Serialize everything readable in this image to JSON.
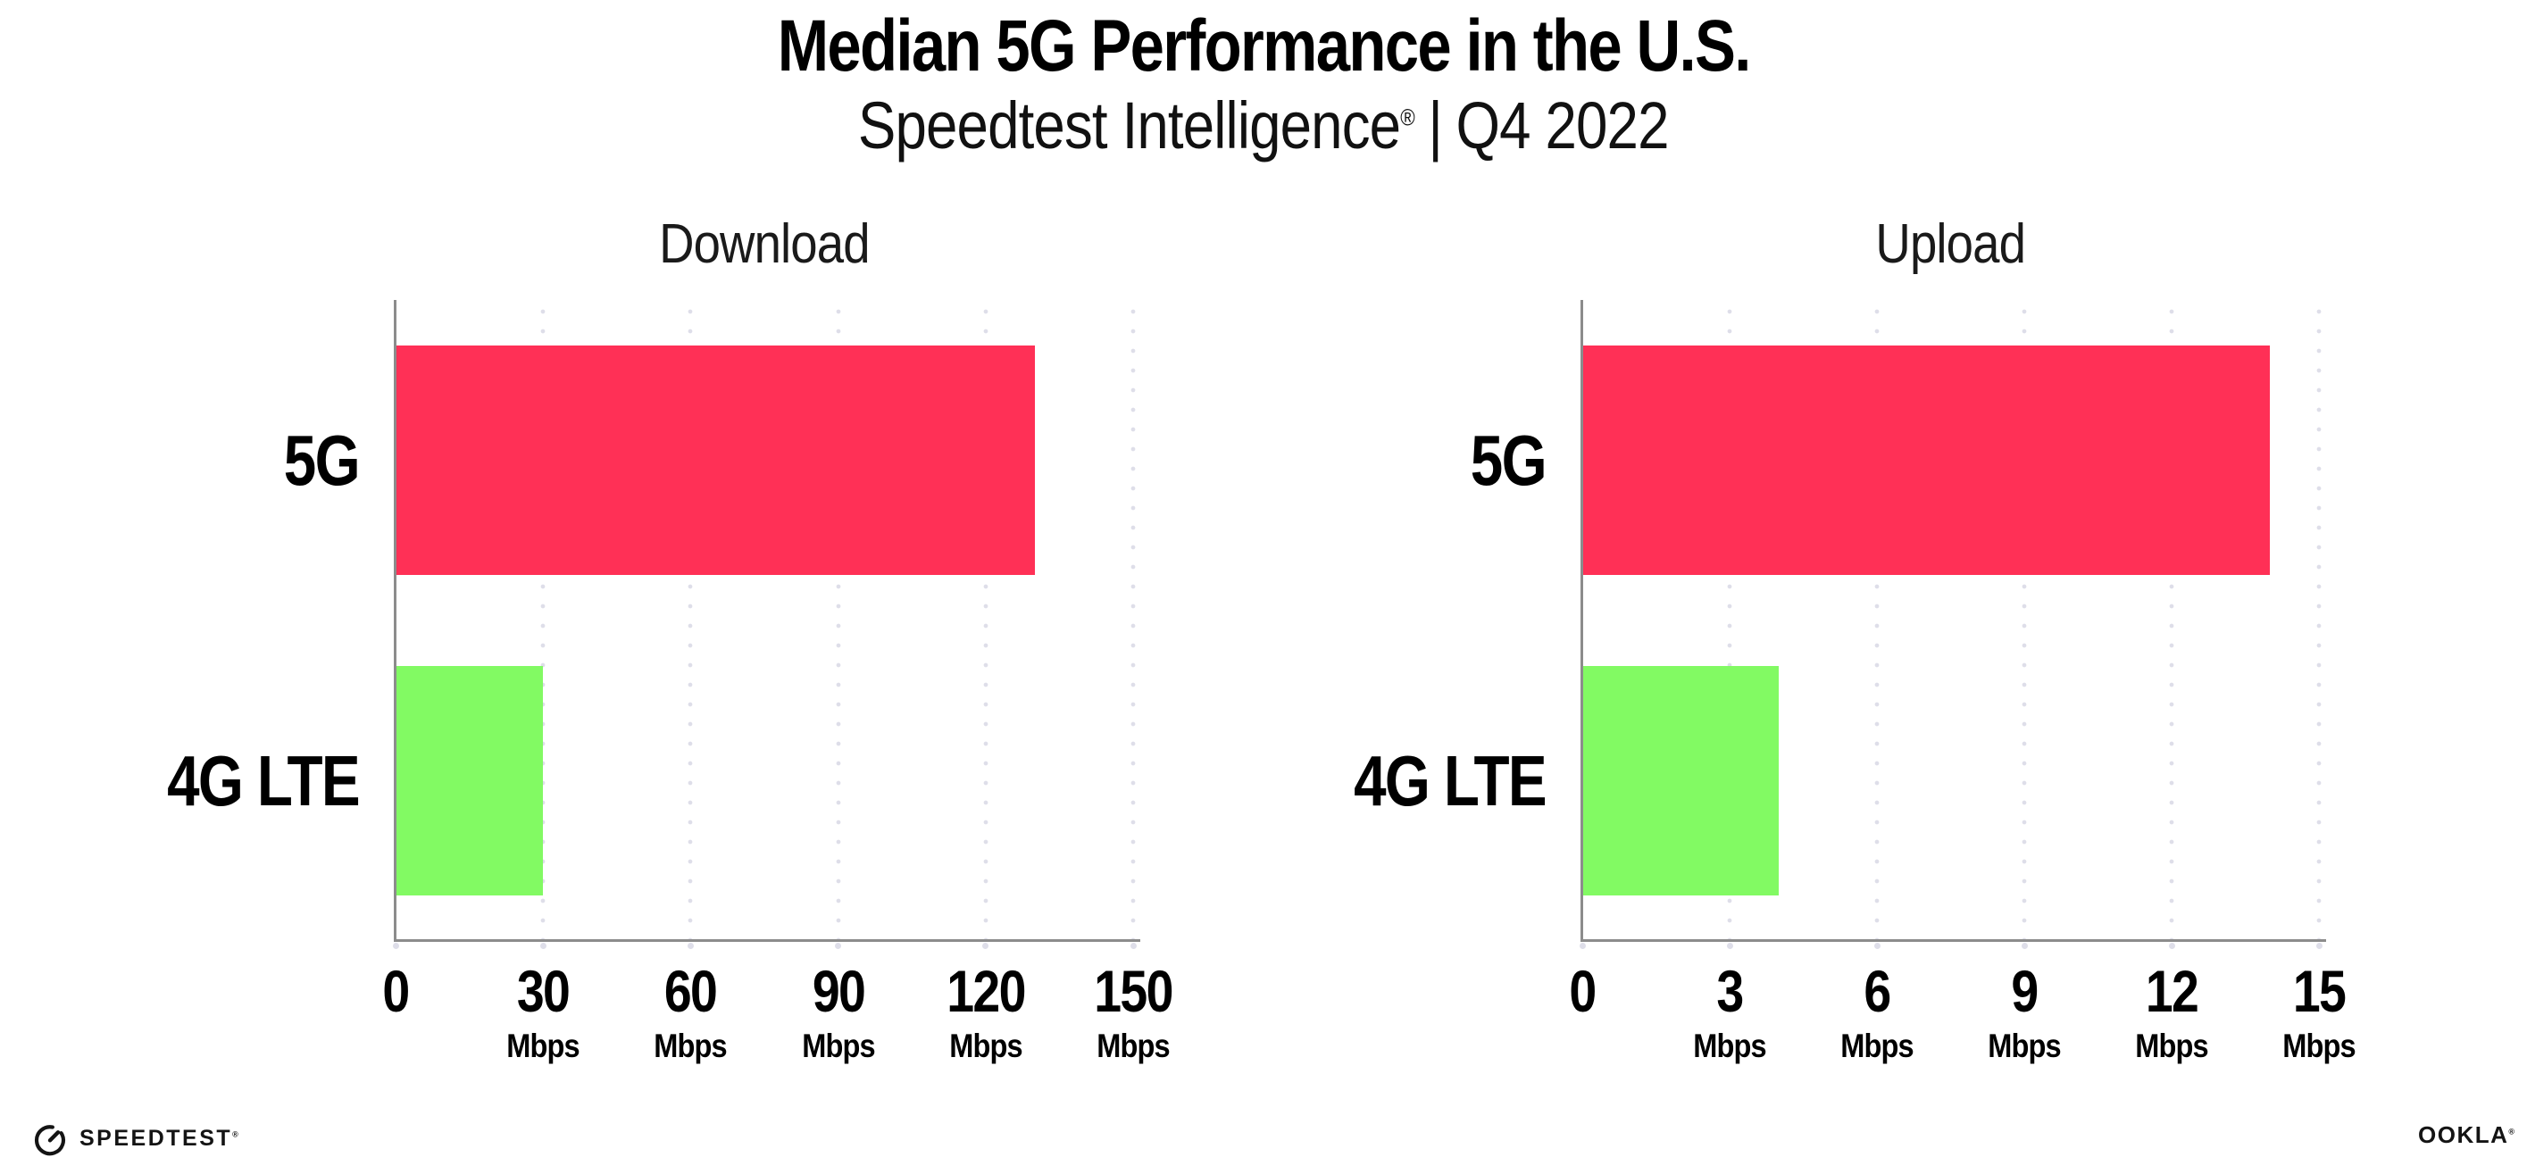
{
  "header": {
    "title": "Median 5G Performance in the U.S.",
    "subtitle_brand": "Speedtest Intelligence",
    "subtitle_mark": "®",
    "subtitle_divider": "|",
    "subtitle_period": "Q4 2022"
  },
  "chart_data": [
    {
      "type": "bar",
      "orientation": "horizontal",
      "title": "Download",
      "unit": "Mbps",
      "categories": [
        "5G",
        "4G LTE"
      ],
      "values": [
        130,
        30
      ],
      "xlim": [
        0,
        150
      ],
      "xticks": [
        0,
        30,
        60,
        90,
        120,
        150
      ],
      "bar_colors": [
        "#FF3056",
        "#82FA63"
      ],
      "grid": "dotted-vertical-light",
      "legend": "none"
    },
    {
      "type": "bar",
      "orientation": "horizontal",
      "title": "Upload",
      "unit": "Mbps",
      "categories": [
        "5G",
        "4G LTE"
      ],
      "values": [
        14,
        4
      ],
      "xlim": [
        0,
        15
      ],
      "xticks": [
        0,
        3,
        6,
        9,
        12,
        15
      ],
      "bar_colors": [
        "#FF3056",
        "#82FA63"
      ],
      "grid": "dotted-vertical-light",
      "legend": "none"
    }
  ],
  "footer": {
    "speedtest_label": "SPEEDTEST",
    "speedtest_mark": "®",
    "ookla_label": "OOKLA",
    "ookla_mark": "®"
  },
  "colors": {
    "bar_5g": "#FF3056",
    "bar_4g_lte": "#82FA63",
    "axis_spine": "#8C8C8C",
    "gridline_dot": "#DEDEE9",
    "text": "#141414"
  }
}
